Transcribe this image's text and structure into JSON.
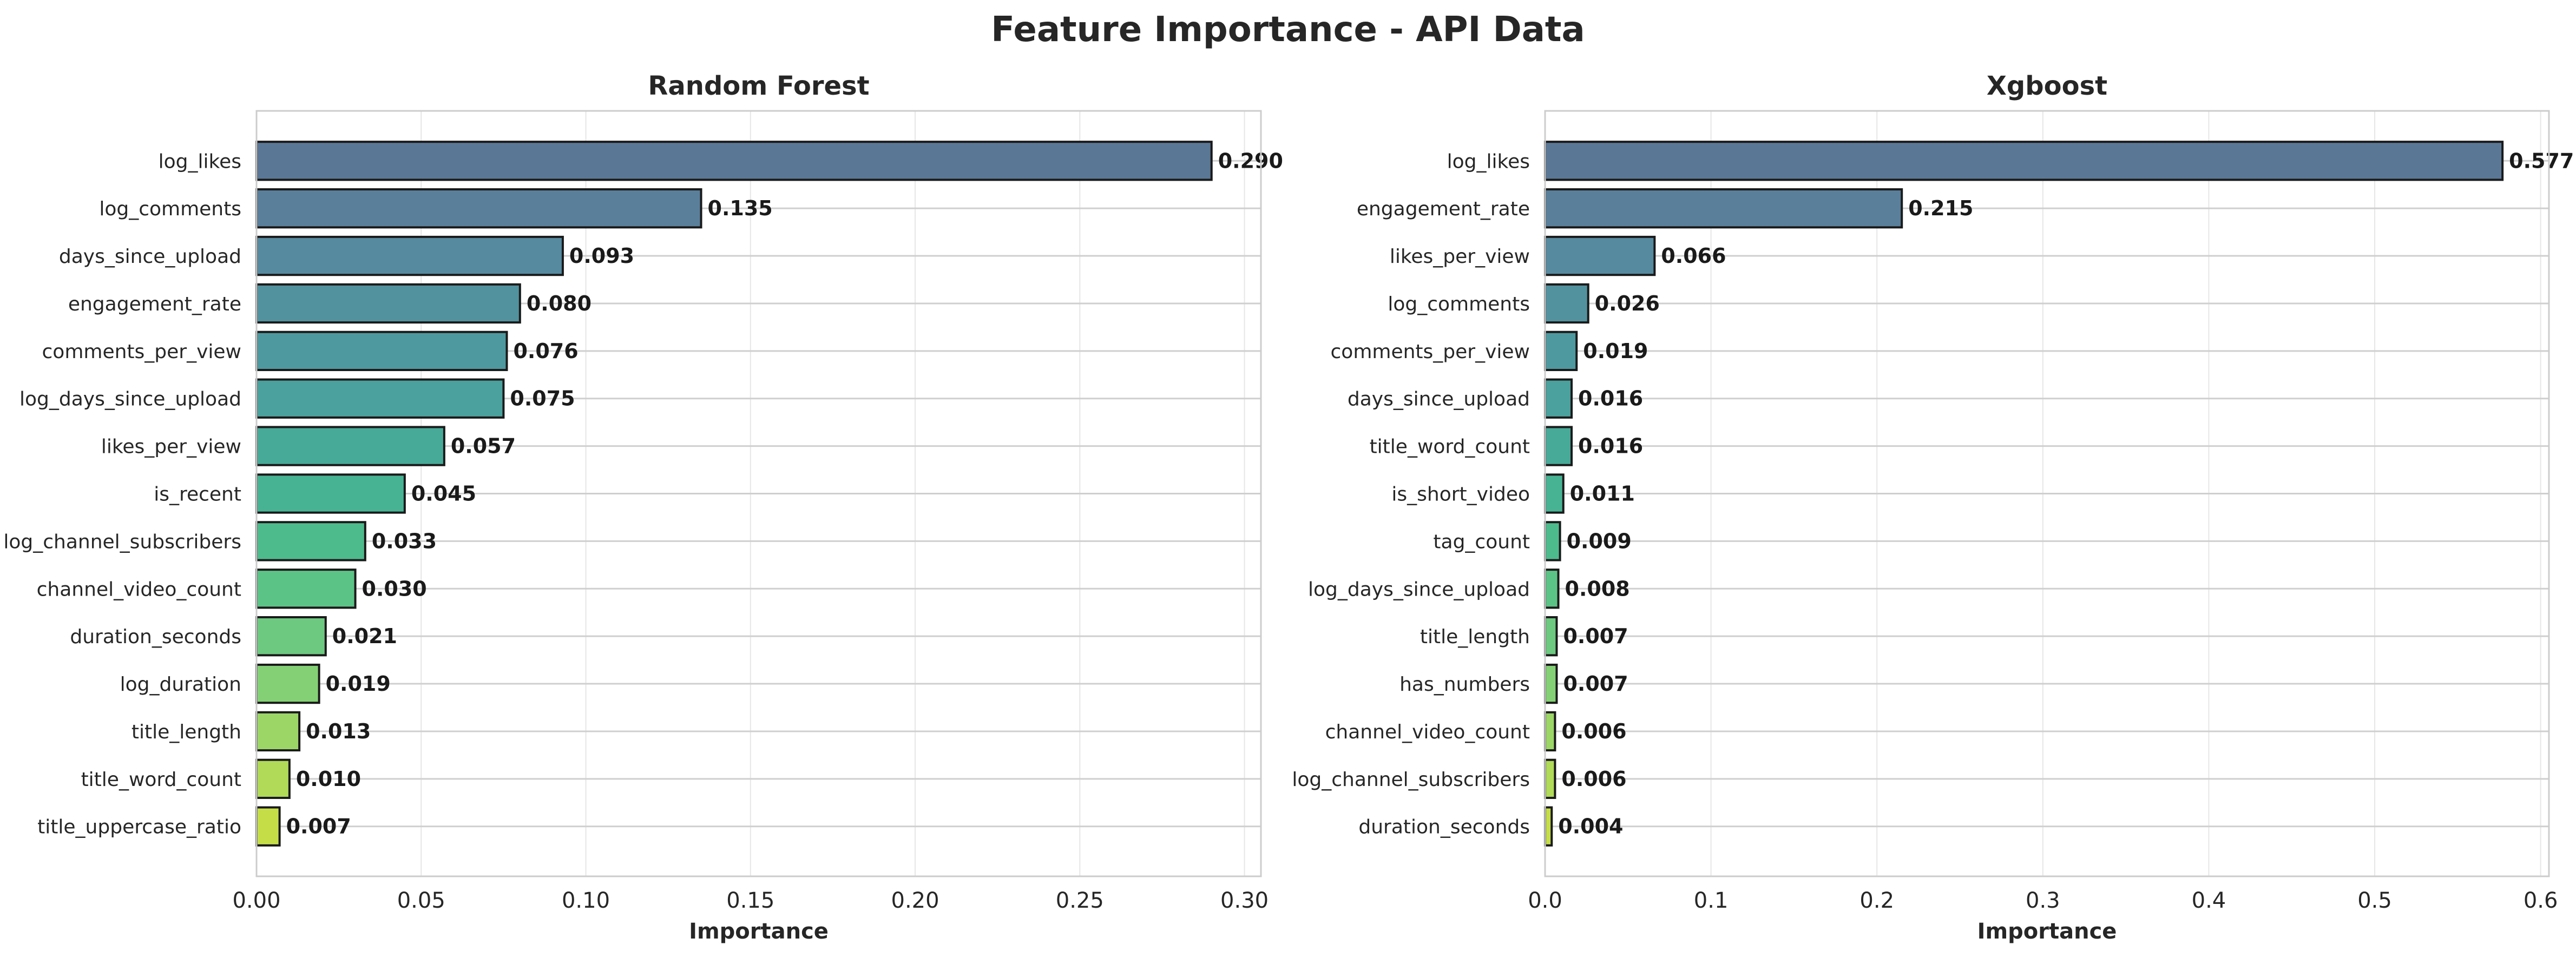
{
  "title": "Feature Importance - API Data",
  "chart_data": [
    {
      "type": "bar",
      "orientation": "horizontal",
      "title": "Random Forest",
      "xlabel": "Importance",
      "ylabel": "",
      "xlim": [
        0,
        0.305
      ],
      "xticks": [
        0.0,
        0.05,
        0.1,
        0.15,
        0.2,
        0.25,
        0.3
      ],
      "xtick_labels": [
        "0.00",
        "0.05",
        "0.10",
        "0.15",
        "0.20",
        "0.25",
        "0.30"
      ],
      "grid": true,
      "categories": [
        "log_likes",
        "log_comments",
        "days_since_upload",
        "engagement_rate",
        "comments_per_view",
        "log_days_since_upload",
        "likes_per_view",
        "is_recent",
        "log_channel_subscribers",
        "channel_video_count",
        "duration_seconds",
        "log_duration",
        "title_length",
        "title_word_count",
        "title_uppercase_ratio"
      ],
      "values": [
        0.29,
        0.135,
        0.093,
        0.08,
        0.076,
        0.075,
        0.057,
        0.045,
        0.033,
        0.03,
        0.021,
        0.019,
        0.013,
        0.01,
        0.007
      ],
      "value_labels": [
        "0.290",
        "0.135",
        "0.093",
        "0.080",
        "0.076",
        "0.075",
        "0.057",
        "0.045",
        "0.033",
        "0.030",
        "0.021",
        "0.019",
        "0.013",
        "0.010",
        "0.007"
      ],
      "colors": [
        "#5a7796",
        "#597f9b",
        "#568a9f",
        "#52929f",
        "#4e999f",
        "#4aa19d",
        "#47aa98",
        "#47b393",
        "#4dbb8c",
        "#5cc386",
        "#6dc980",
        "#84d175",
        "#9cd667",
        "#b0da57",
        "#c5de48"
      ]
    },
    {
      "type": "bar",
      "orientation": "horizontal",
      "title": "Xgboost",
      "xlabel": "Importance",
      "ylabel": "",
      "xlim": [
        0,
        0.605
      ],
      "xticks": [
        0,
        0.1,
        0.2,
        0.3,
        0.4,
        0.5,
        0.6
      ],
      "xtick_labels": [
        "0.0",
        "0.1",
        "0.2",
        "0.3",
        "0.4",
        "0.5",
        "0.6"
      ],
      "grid": true,
      "categories": [
        "log_likes",
        "engagement_rate",
        "likes_per_view",
        "log_comments",
        "comments_per_view",
        "days_since_upload",
        "title_word_count",
        "is_short_video",
        "tag_count",
        "log_days_since_upload",
        "title_length",
        "has_numbers",
        "channel_video_count",
        "log_channel_subscribers",
        "duration_seconds"
      ],
      "values": [
        0.577,
        0.215,
        0.066,
        0.026,
        0.019,
        0.016,
        0.016,
        0.011,
        0.009,
        0.008,
        0.007,
        0.007,
        0.006,
        0.006,
        0.004
      ],
      "value_labels": [
        "0.577",
        "0.215",
        "0.066",
        "0.026",
        "0.019",
        "0.016",
        "0.016",
        "0.011",
        "0.009",
        "0.008",
        "0.007",
        "0.007",
        "0.006",
        "0.006",
        "0.004"
      ],
      "colors": [
        "#5a7796",
        "#597f9b",
        "#568a9f",
        "#52929f",
        "#4e999f",
        "#4aa19d",
        "#47aa98",
        "#47b393",
        "#4dbb8c",
        "#5cc386",
        "#6dc980",
        "#84d175",
        "#9cd667",
        "#b0da57",
        "#c5de48"
      ]
    }
  ]
}
